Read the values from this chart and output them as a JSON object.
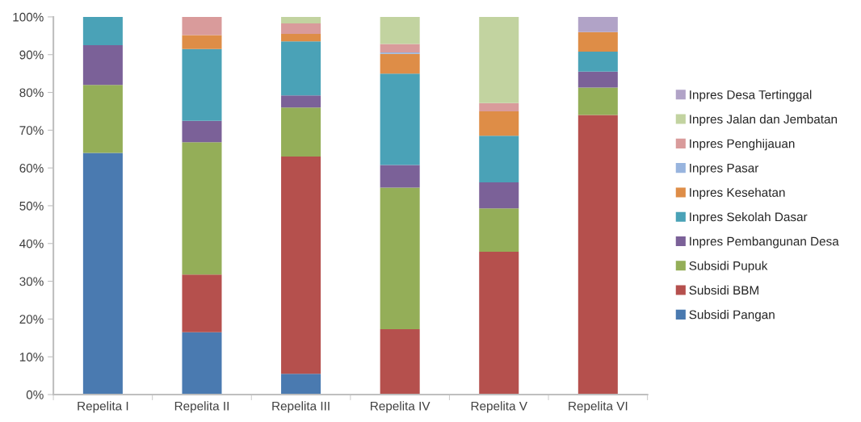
{
  "chart_data": {
    "type": "bar",
    "stacked": true,
    "legend": "right",
    "grid": false,
    "categories": [
      "Repelita I",
      "Repelita II",
      "Repelita III",
      "Repelita IV",
      "Repelita V",
      "Repelita VI"
    ],
    "ylim": [
      0,
      100
    ],
    "yticks": [
      {
        "value": 0,
        "label": "0%"
      },
      {
        "value": 10,
        "label": "10%"
      },
      {
        "value": 20,
        "label": "20%"
      },
      {
        "value": 30,
        "label": "30%"
      },
      {
        "value": 40,
        "label": "40%"
      },
      {
        "value": 50,
        "label": "50%"
      },
      {
        "value": 60,
        "label": "60%"
      },
      {
        "value": 70,
        "label": "70%"
      },
      {
        "value": 80,
        "label": "80%"
      },
      {
        "value": 90,
        "label": "90%"
      },
      {
        "value": 100,
        "label": "100%"
      }
    ],
    "series": [
      {
        "name": "Subsidi Pangan",
        "color": "#4a7ab0",
        "values": [
          64,
          16.5,
          5.5,
          0,
          0,
          0
        ]
      },
      {
        "name": "Subsidi BBM",
        "color": "#b5504d",
        "values": [
          0,
          15.3,
          57.5,
          17.3,
          37.8,
          74
        ]
      },
      {
        "name": "Subsidi Pupuk",
        "color": "#94ae58",
        "values": [
          18,
          35,
          13,
          37.5,
          11.5,
          7.3
        ]
      },
      {
        "name": "Inpres Pembangunan Desa",
        "color": "#7b6198",
        "values": [
          10.5,
          5.7,
          3.2,
          6,
          6.9,
          4.2
        ]
      },
      {
        "name": "Inpres Sekolah Dasar",
        "color": "#4aa2b7",
        "values": [
          7.5,
          19,
          14.3,
          24.2,
          12.3,
          5.3
        ]
      },
      {
        "name": "Inpres Kesehatan",
        "color": "#de8d47",
        "values": [
          0,
          3.7,
          2,
          5.2,
          6.5,
          5.2
        ]
      },
      {
        "name": "Inpres Pasar",
        "color": "#98b4de",
        "values": [
          0,
          0,
          0,
          0.4,
          0,
          0
        ]
      },
      {
        "name": "Inpres Penghijauan",
        "color": "#d99b9b",
        "values": [
          0,
          4.8,
          2.8,
          2.2,
          2.2,
          0
        ]
      },
      {
        "name": "Inpres Jalan dan Jembatan",
        "color": "#c2d3a0",
        "values": [
          0,
          0,
          1.7,
          7.2,
          22.8,
          0
        ]
      },
      {
        "name": "Inpres Desa Tertinggal",
        "color": "#b1a3c7",
        "values": [
          0,
          0,
          0,
          0,
          0,
          4
        ]
      }
    ]
  }
}
